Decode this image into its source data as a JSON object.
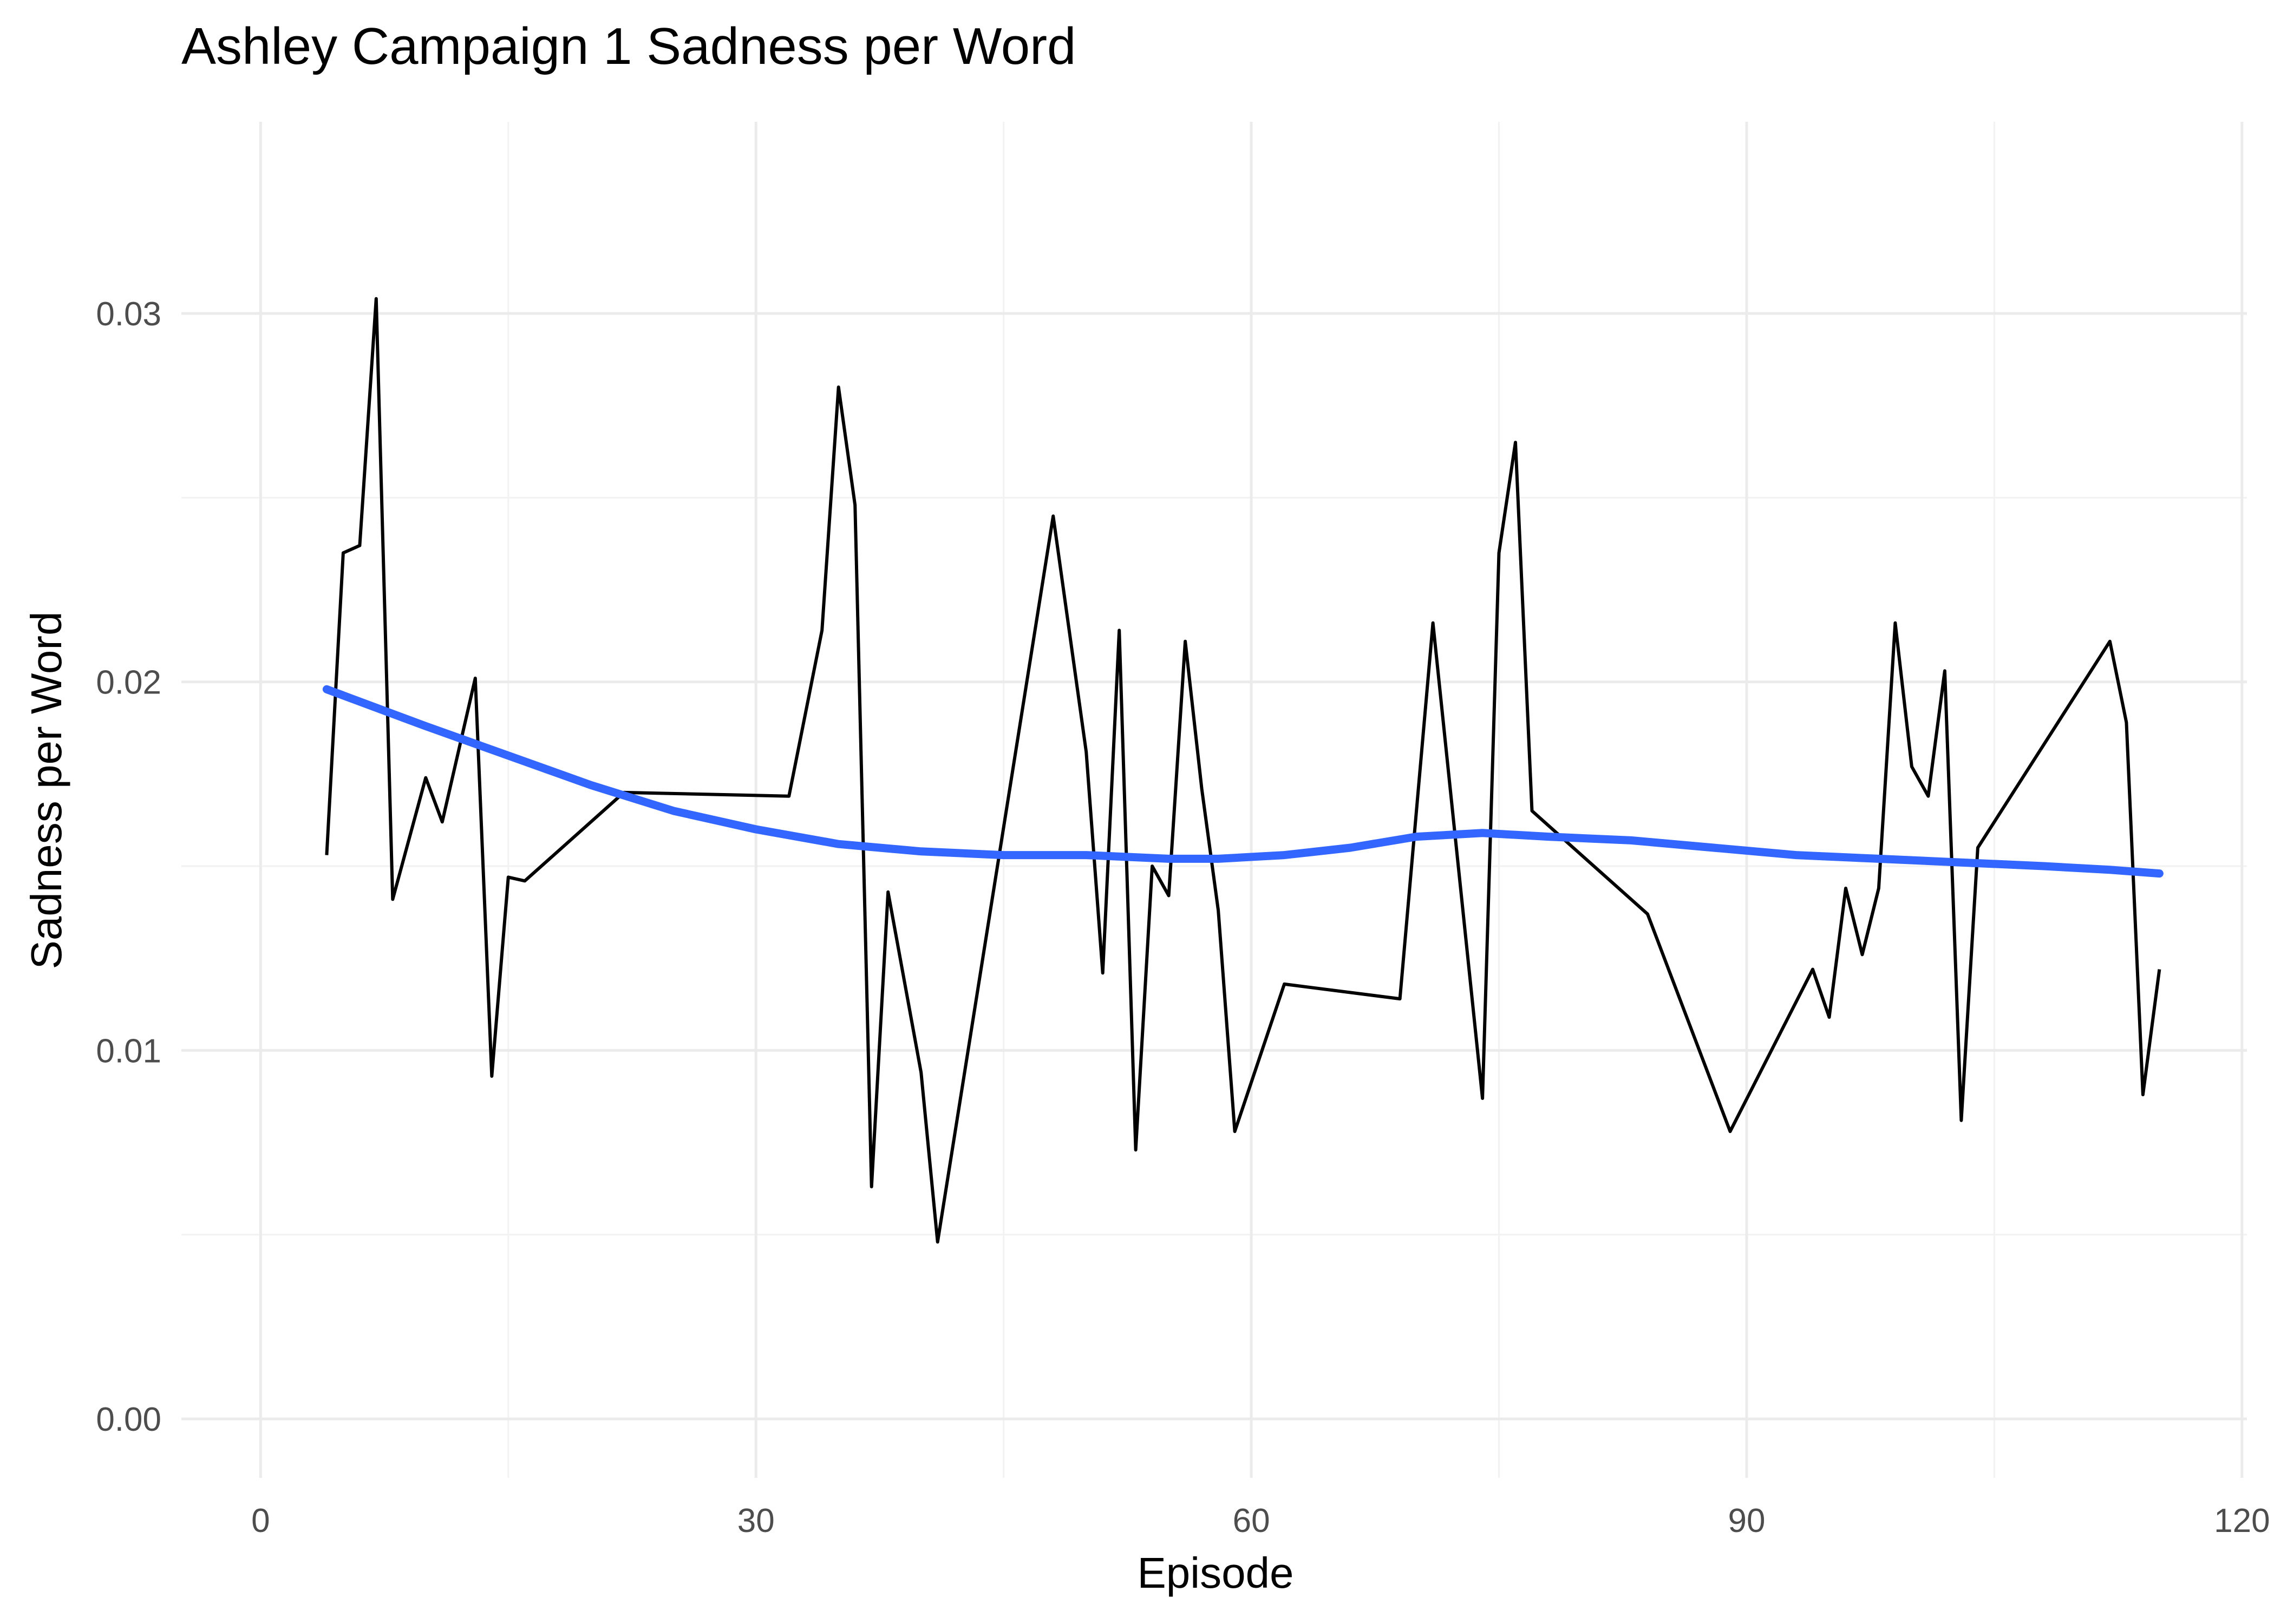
{
  "chart_data": {
    "type": "line",
    "title": "Ashley Campaign 1 Sadness per Word",
    "xlabel": "Episode",
    "ylabel": "Sadness per Word",
    "xlim": [
      -4.8,
      120.3
    ],
    "ylim": [
      -0.0016,
      0.0352
    ],
    "x_ticks": [
      0,
      30,
      60,
      90,
      120
    ],
    "x_tick_labels": [
      "0",
      "30",
      "60",
      "90",
      "120"
    ],
    "x_minor_ticks": [
      15,
      45,
      75,
      105
    ],
    "y_ticks": [
      0.0,
      0.01,
      0.02,
      0.03
    ],
    "y_tick_labels": [
      "0.00",
      "0.01",
      "0.02",
      "0.03"
    ],
    "y_minor_ticks": [
      0.005,
      0.015,
      0.025
    ],
    "grid": true,
    "legend": "none",
    "series": [
      {
        "color": "#000000",
        "x": [
          4,
          5,
          6,
          7,
          8,
          10,
          11,
          13,
          14,
          15,
          16,
          22,
          32,
          34,
          35,
          36,
          37,
          38,
          40,
          41,
          48,
          50,
          51,
          52,
          53,
          54,
          55,
          56,
          57,
          58,
          59,
          62,
          69,
          71,
          74,
          75,
          76,
          77,
          84,
          89,
          94,
          95,
          96,
          97,
          98,
          99,
          100,
          101,
          102,
          103,
          104,
          112,
          113,
          114,
          115
        ],
        "y": [
          0.0153,
          0.0235,
          0.0237,
          0.0304,
          0.0141,
          0.0174,
          0.0162,
          0.0201,
          0.0093,
          0.0147,
          0.0146,
          0.017,
          0.0169,
          0.0214,
          0.028,
          0.0248,
          0.0063,
          0.0143,
          0.0094,
          0.0048,
          0.0245,
          0.0181,
          0.0121,
          0.0214,
          0.0073,
          0.015,
          0.0142,
          0.0211,
          0.0171,
          0.0138,
          0.0078,
          0.0118,
          0.0114,
          0.0216,
          0.0087,
          0.0235,
          0.0265,
          0.0165,
          0.0137,
          0.0078,
          0.0122,
          0.0109,
          0.0144,
          0.0126,
          0.0144,
          0.0216,
          0.0177,
          0.0169,
          0.0203,
          0.0081,
          0.0155,
          0.0211,
          0.0189,
          0.0088,
          0.0122
        ]
      },
      {
        "color": "#3366ff",
        "x": [
          4,
          10,
          15,
          20,
          25,
          30,
          35,
          40,
          45,
          50,
          55,
          58,
          62,
          66,
          70,
          74,
          78,
          83,
          88,
          93,
          98,
          103,
          108,
          112,
          115
        ],
        "y": [
          0.0198,
          0.0188,
          0.018,
          0.0172,
          0.0165,
          0.016,
          0.0156,
          0.0154,
          0.0153,
          0.0153,
          0.0152,
          0.0152,
          0.0153,
          0.0155,
          0.0158,
          0.0159,
          0.0158,
          0.0157,
          0.0155,
          0.0153,
          0.0152,
          0.0151,
          0.015,
          0.0149,
          0.0148
        ]
      }
    ]
  }
}
